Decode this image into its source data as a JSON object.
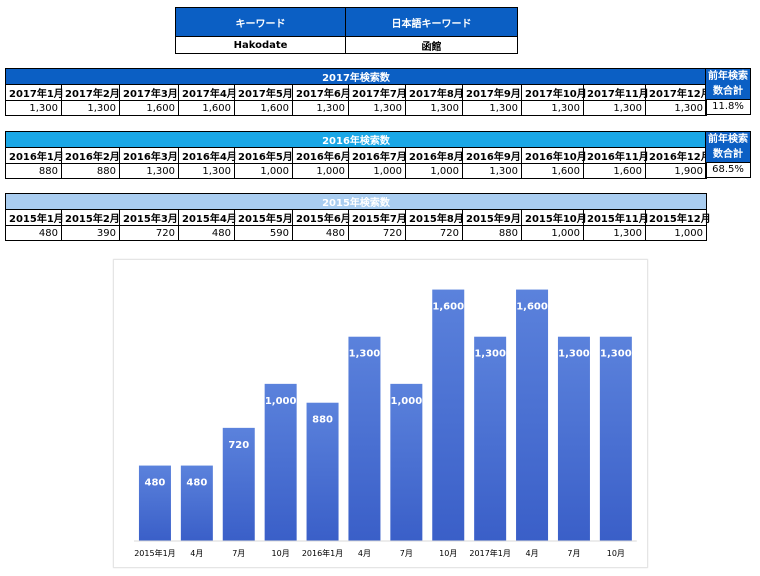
{
  "keyword_table": {
    "header_left": "キーワード",
    "header_right": "日本語キーワード",
    "value_left": "Hakodate",
    "value_right": "函館"
  },
  "t2017": {
    "title": "2017年検索数",
    "months": [
      "2017年1月",
      "2017年2月",
      "2017年3月",
      "2017年4月",
      "2017年5月",
      "2017年6月",
      "2017年7月",
      "2017年8月",
      "2017年9月",
      "2017年10月",
      "2017年11月",
      "2017年12月"
    ],
    "values": [
      "1,300",
      "1,300",
      "1,600",
      "1,600",
      "1,600",
      "1,300",
      "1,300",
      "1,300",
      "1,300",
      "1,300",
      "1,300",
      "1,300"
    ],
    "side_label_1": "前年検索",
    "side_label_2": "数合計",
    "percent": "11.8%",
    "color": "#0b5fc4"
  },
  "t2016": {
    "title": "2016年検索数",
    "months": [
      "2016年1月",
      "2016年2月",
      "2016年3月",
      "2016年4月",
      "2016年5月",
      "2016年6月",
      "2016年7月",
      "2016年8月",
      "2016年9月",
      "2016年10月",
      "2016年11月",
      "2016年12月"
    ],
    "values": [
      "880",
      "880",
      "1,300",
      "1,300",
      "1,000",
      "1,000",
      "1,000",
      "1,000",
      "1,300",
      "1,600",
      "1,600",
      "1,900"
    ],
    "side_label_1": "前年検索",
    "side_label_2": "数合計",
    "percent": "68.5%",
    "color": "#1aa7e6",
    "side_color": "#0b5fc4"
  },
  "t2015": {
    "title": "2015年検索数",
    "months": [
      "2015年1月",
      "2015年2月",
      "2015年3月",
      "2015年4月",
      "2015年5月",
      "2015年6月",
      "2015年7月",
      "2015年8月",
      "2015年9月",
      "2015年10月",
      "2015年11月",
      "2015年12月"
    ],
    "values": [
      "480",
      "390",
      "720",
      "480",
      "590",
      "480",
      "720",
      "720",
      "880",
      "1,000",
      "1,300",
      "1,000"
    ],
    "color": "#a9cdf0"
  },
  "chart_data": {
    "type": "bar",
    "categories": [
      "2015年1月",
      "4月",
      "7月",
      "10月",
      "2016年1月",
      "4月",
      "7月",
      "10月",
      "2017年1月",
      "4月",
      "7月",
      "10月"
    ],
    "values": [
      480,
      480,
      720,
      1000,
      880,
      1300,
      1000,
      1600,
      1300,
      1600,
      1300,
      1300
    ],
    "data_labels": [
      "480",
      "480",
      "720",
      "1,000",
      "880",
      "1,300",
      "1,000",
      "1,600",
      "1,300",
      "1,600",
      "1,300",
      "1,300"
    ],
    "ylim": [
      0,
      1750
    ],
    "grid": false,
    "legend": "none",
    "bar_color_top": "#5b82dc",
    "bar_color_bottom": "#3a5fc8"
  }
}
